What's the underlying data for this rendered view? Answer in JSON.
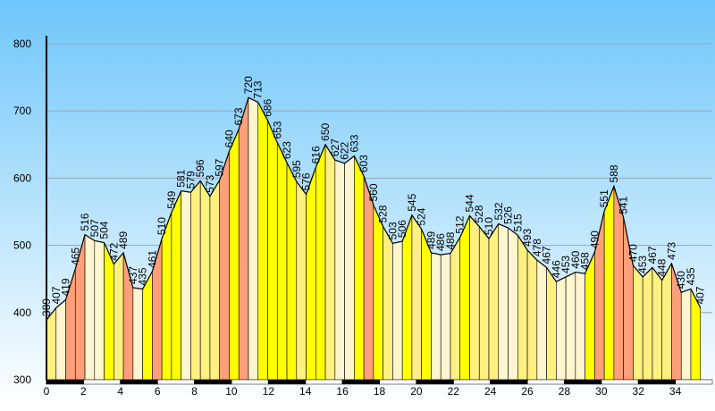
{
  "chart_data": {
    "type": "area",
    "x": [
      0,
      0.52,
      1.04,
      1.56,
      2.08,
      2.6,
      3.12,
      3.64,
      4.16,
      4.68,
      5.2,
      5.72,
      6.24,
      6.76,
      7.28,
      7.8,
      8.32,
      8.84,
      9.36,
      9.88,
      10.4,
      10.92,
      11.44,
      11.96,
      12.48,
      13,
      13.52,
      14.04,
      14.56,
      15.08,
      15.6,
      16.12,
      16.64,
      17.16,
      17.68,
      18.2,
      18.72,
      19.24,
      19.76,
      20.28,
      20.8,
      21.32,
      21.84,
      22.36,
      22.88,
      23.4,
      23.92,
      24.44,
      24.96,
      25.48,
      26,
      26.52,
      27.04,
      27.56,
      28.08,
      28.6,
      29.12,
      29.64,
      30.16,
      30.68,
      31.2,
      31.72,
      32.24,
      32.76,
      33.28,
      33.8,
      34.32,
      34.84,
      35.36
    ],
    "values": [
      389,
      407,
      419,
      465,
      516,
      507,
      504,
      472,
      489,
      437,
      435,
      461,
      510,
      549,
      581,
      579,
      596,
      573,
      597,
      640,
      673,
      720,
      713,
      686,
      653,
      623,
      595,
      576,
      616,
      650,
      627,
      622,
      633,
      603,
      560,
      528,
      503,
      506,
      545,
      524,
      489,
      486,
      488,
      512,
      544,
      528,
      510,
      532,
      526,
      515,
      493,
      478,
      467,
      446,
      453,
      460,
      458,
      490,
      551,
      588,
      541,
      470,
      453,
      467,
      448,
      473,
      430,
      435,
      407
    ],
    "xlim": [
      0,
      36
    ],
    "ylim": [
      300,
      812
    ],
    "xticks": [
      0,
      2,
      4,
      6,
      8,
      10,
      12,
      14,
      16,
      18,
      20,
      22,
      24,
      26,
      28,
      30,
      32,
      34
    ],
    "yticks": [
      300,
      400,
      500,
      600,
      700,
      800
    ],
    "grid": true
  }
}
